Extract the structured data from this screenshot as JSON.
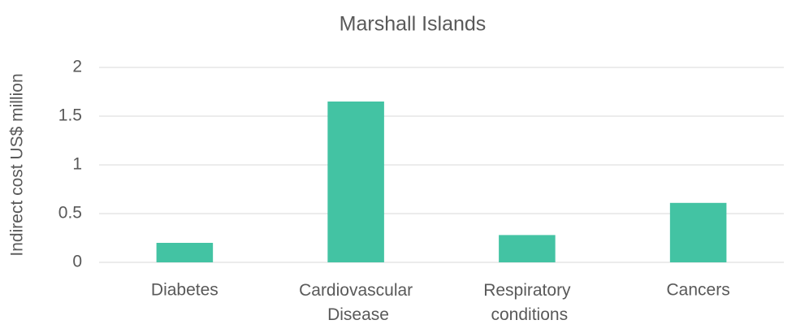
{
  "chart_data": {
    "type": "bar",
    "title": "Marshall Islands",
    "y_label": "Indirect cost US$ million",
    "categories": [
      "Diabetes",
      "Cardiovascular Disease",
      "Respiratory conditions",
      "Cancers"
    ],
    "values": [
      0.2,
      1.65,
      0.28,
      0.61
    ],
    "color": "#43c3a3",
    "ylim": [
      0,
      2
    ],
    "yticks": [
      0,
      0.5,
      1,
      1.5,
      2
    ],
    "grid": true
  }
}
